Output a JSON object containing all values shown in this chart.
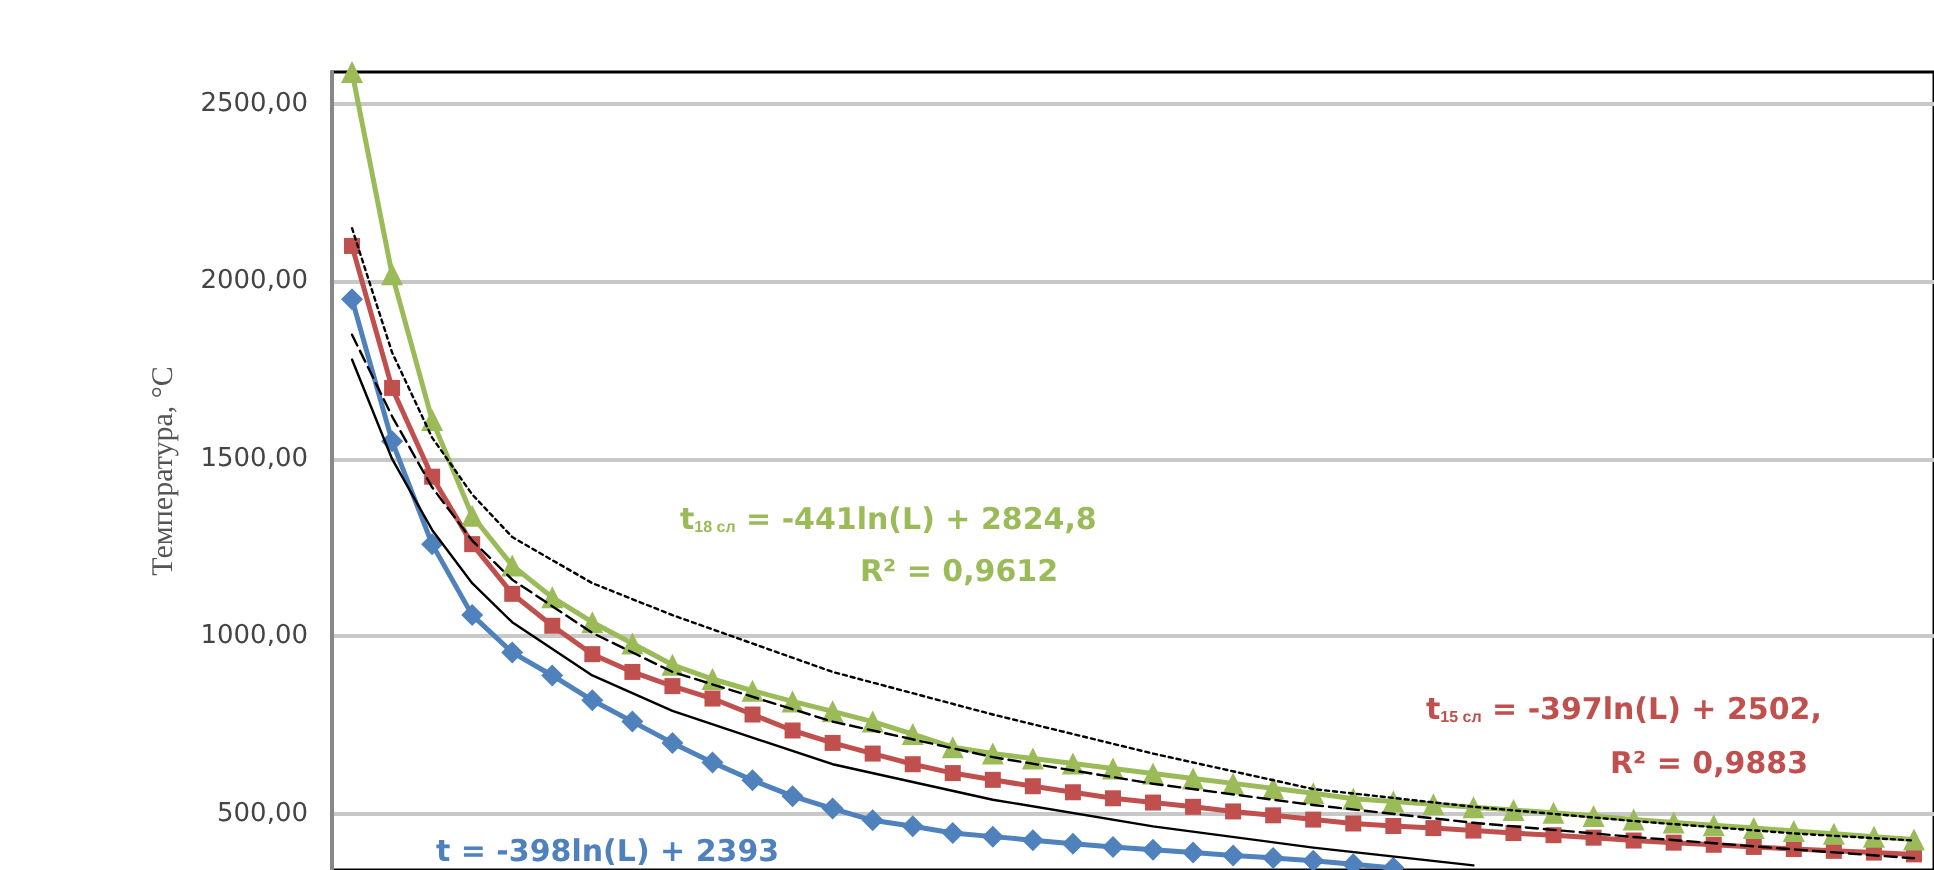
{
  "chart_data": {
    "type": "line",
    "ylabel": "Температура, °С",
    "categories": [
      null,
      null,
      null,
      null,
      null,
      null,
      null,
      null,
      null,
      null,
      null,
      null,
      null,
      null,
      null,
      null,
      null,
      null,
      null,
      null,
      null,
      null,
      null,
      null,
      null,
      null,
      null,
      null,
      null,
      null,
      null,
      null,
      null,
      null,
      null,
      null,
      null,
      null,
      null,
      null
    ],
    "series": [
      {
        "color": "#4f81bd",
        "marker": "diamond",
        "values": [
          1950,
          1550,
          1260,
          1060,
          955,
          890,
          820,
          760,
          700,
          645,
          595,
          550,
          515,
          482,
          465,
          446,
          436,
          426,
          416,
          407,
          399,
          391,
          383,
          376,
          368,
          358,
          348,
          null,
          null,
          null,
          null,
          null,
          null,
          null,
          null,
          null,
          null,
          null,
          null,
          null
        ]
      },
      {
        "color": "#c0504d",
        "marker": "square",
        "values": [
          2100,
          1700,
          1450,
          1260,
          1120,
          1030,
          950,
          900,
          860,
          825,
          780,
          735,
          700,
          670,
          640,
          615,
          596,
          578,
          561,
          544,
          532,
          520,
          507,
          496,
          484,
          473,
          466,
          460,
          453,
          446,
          440,
          433,
          425,
          419,
          413,
          407,
          401,
          396,
          391,
          386
        ]
      },
      {
        "color": "#9bbb59",
        "marker": "triangle",
        "values": [
          2590,
          2020,
          1610,
          1340,
          1200,
          1110,
          1040,
          980,
          920,
          880,
          847,
          817,
          789,
          760,
          725,
          688,
          670,
          656,
          642,
          628,
          614,
          600,
          586,
          572,
          558,
          543,
          535,
          527,
          519,
          511,
          503,
          494,
          484,
          476,
          468,
          460,
          452,
          444,
          436,
          428
        ]
      },
      {
        "color": "#000000",
        "marker": "none",
        "line_style": "solid",
        "values": [
          1780,
          1500,
          1300,
          1150,
          1040,
          null,
          890,
          null,
          790,
          null,
          null,
          null,
          640,
          null,
          null,
          null,
          540,
          null,
          null,
          null,
          465,
          null,
          null,
          null,
          405,
          null,
          null,
          null,
          355,
          null,
          null,
          null,
          null,
          null,
          null,
          null,
          null,
          null,
          null,
          null
        ]
      },
      {
        "color": "#000000",
        "marker": "none",
        "line_style": "dashed",
        "values": [
          1850,
          1620,
          1420,
          1270,
          1160,
          null,
          1010,
          null,
          900,
          null,
          null,
          null,
          760,
          null,
          null,
          null,
          660,
          null,
          null,
          null,
          585,
          null,
          null,
          null,
          525,
          null,
          null,
          null,
          475,
          null,
          null,
          null,
          435,
          null,
          null,
          null,
          400,
          null,
          null,
          375
        ]
      },
      {
        "color": "#000000",
        "marker": "none",
        "line_style": "dotted",
        "values": [
          2150,
          1800,
          1560,
          1400,
          1280,
          null,
          1150,
          null,
          1060,
          null,
          null,
          null,
          900,
          null,
          null,
          null,
          780,
          null,
          null,
          null,
          670,
          null,
          null,
          null,
          570,
          null,
          null,
          null,
          520,
          null,
          null,
          null,
          480,
          null,
          null,
          null,
          445,
          null,
          null,
          425
        ]
      }
    ],
    "ylim": [
      342,
      2590
    ],
    "yticks": [
      {
        "value": 500,
        "label": "500,00"
      },
      {
        "value": 1000,
        "label": "1000,00"
      },
      {
        "value": 1500,
        "label": "1500,00"
      },
      {
        "value": 2000,
        "label": "2000,00"
      },
      {
        "value": 2500,
        "label": "2500,00"
      }
    ],
    "grid": "y",
    "tick_labels": "y",
    "annotations": [
      "t$_{18 сл}$ = -441ln(L) + 2824,8",
      "R² = 0,9612",
      "t$_{15 сл}$ = -397ln(L) + 2502,",
      "R² = 0,9883",
      "t = -398ln(L) + 2393"
    ]
  }
}
